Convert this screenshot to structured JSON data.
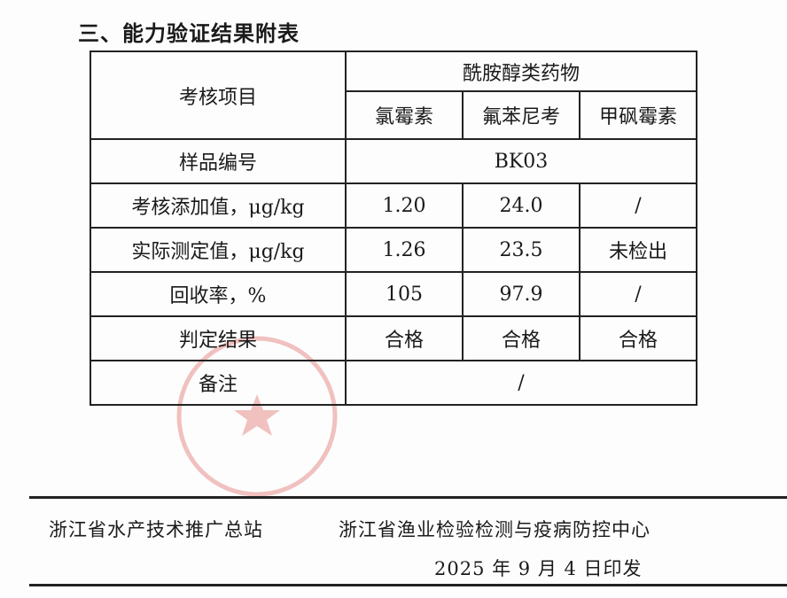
{
  "section_title": "三、能力验证结果附表",
  "table": {
    "item_header": "考核项目",
    "group_header": "酰胺醇类药物",
    "drugs": [
      "氯霉素",
      "氟苯尼考",
      "甲砜霉素"
    ],
    "sample_label": "样品编号",
    "sample_id": "BK03",
    "rows": [
      {
        "label": "考核添加值，μg/kg",
        "values": [
          "1.20",
          "24.0",
          "/"
        ]
      },
      {
        "label": "实际测定值，μg/kg",
        "values": [
          "1.26",
          "23.5",
          "未检出"
        ]
      },
      {
        "label": "回收率，%",
        "values": [
          "105",
          "97.9",
          "/"
        ]
      },
      {
        "label": "判定结果",
        "values": [
          "合格",
          "合格",
          "合格"
        ]
      }
    ],
    "remark_label": "备注",
    "remark_value": "/"
  },
  "footer": {
    "issuer_1": "浙江省水产技术推广总站",
    "issuer_2": "浙江省渔业检验检测与疫病防控中心",
    "date": "2025 年 9 月 4 日印发"
  },
  "stamp_color": "#d9534f"
}
